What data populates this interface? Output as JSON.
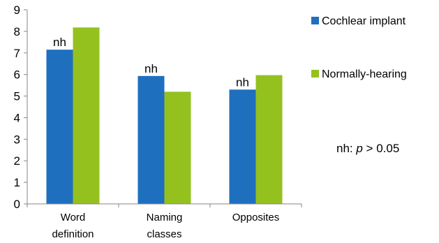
{
  "chart_data": {
    "type": "bar",
    "title": "",
    "xlabel": "",
    "ylabel": "",
    "ylim": [
      0,
      9
    ],
    "yticks": [
      0,
      1,
      2,
      3,
      4,
      5,
      6,
      7,
      8,
      9
    ],
    "grid": false,
    "legend_position": "right",
    "categories": [
      [
        "Word",
        "definition"
      ],
      [
        "Naming",
        "classes"
      ],
      [
        "Opposites"
      ]
    ],
    "series": [
      {
        "name": "Cochlear implant",
        "color": "#1f6fbf",
        "values": [
          7.15,
          5.93,
          5.3
        ]
      },
      {
        "name": "Normally-hearing",
        "color": "#95c11f",
        "values": [
          8.18,
          5.2,
          5.97
        ]
      }
    ],
    "bar_annotations": [
      "nh",
      "nh",
      "nh"
    ]
  },
  "note": {
    "prefix": "nh: ",
    "italic": "p",
    "suffix": " > 0.05"
  }
}
